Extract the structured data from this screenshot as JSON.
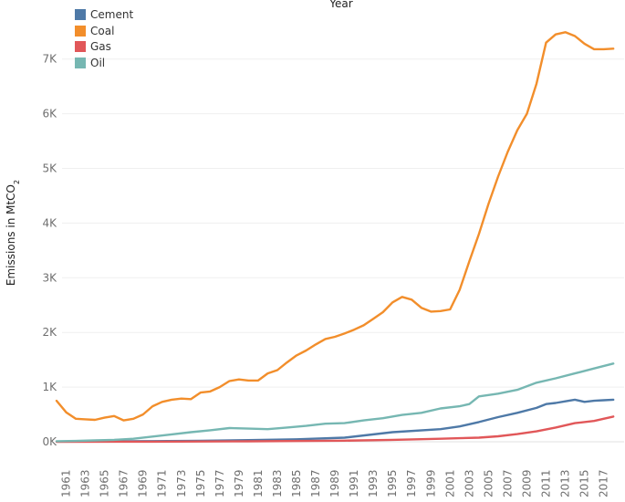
{
  "chart_data": {
    "type": "line",
    "title": "",
    "top_axis_label": "Year",
    "ylabel": "Emissions in MtCO",
    "ylabel_subscript": "2",
    "xlabel": "",
    "ylim": [
      -250,
      7650
    ],
    "yticks": [
      0,
      1000,
      2000,
      3000,
      4000,
      5000,
      6000,
      7000
    ],
    "ytick_labels": [
      "0K",
      "1K",
      "2K",
      "3K",
      "4K",
      "5K",
      "6K",
      "7K"
    ],
    "xrange": [
      1960,
      2018
    ],
    "xticks": [
      1961,
      1963,
      1965,
      1967,
      1969,
      1971,
      1973,
      1975,
      1977,
      1979,
      1981,
      1983,
      1985,
      1987,
      1989,
      1991,
      1993,
      1995,
      1997,
      1999,
      2001,
      2003,
      2005,
      2007,
      2009,
      2011,
      2013,
      2015,
      2017
    ],
    "grid": true,
    "legend_position": "top-left",
    "series": [
      {
        "name": "Cement",
        "color": "#4e79a7",
        "x": [
          1960,
          1965,
          1970,
          1975,
          1980,
          1985,
          1990,
          1995,
          2000,
          2002,
          2004,
          2006,
          2008,
          2010,
          2011,
          2012,
          2013,
          2014,
          2015,
          2016,
          2017,
          2018
        ],
        "values": [
          5,
          8,
          12,
          18,
          30,
          45,
          75,
          175,
          230,
          280,
          360,
          450,
          530,
          620,
          690,
          710,
          740,
          770,
          730,
          750,
          760,
          770
        ]
      },
      {
        "name": "Coal",
        "color": "#f28e2b",
        "x": [
          1960,
          1961,
          1962,
          1963,
          1964,
          1965,
          1966,
          1967,
          1968,
          1969,
          1970,
          1971,
          1972,
          1973,
          1974,
          1975,
          1976,
          1977,
          1978,
          1979,
          1980,
          1981,
          1982,
          1983,
          1984,
          1985,
          1986,
          1987,
          1988,
          1989,
          1990,
          1991,
          1992,
          1993,
          1994,
          1995,
          1996,
          1997,
          1998,
          1999,
          2000,
          2001,
          2002,
          2003,
          2004,
          2005,
          2006,
          2007,
          2008,
          2009,
          2010,
          2011,
          2012,
          2013,
          2014,
          2015,
          2016,
          2017,
          2018
        ],
        "values": [
          750,
          540,
          420,
          410,
          400,
          440,
          470,
          390,
          420,
          500,
          650,
          730,
          770,
          790,
          780,
          900,
          920,
          1000,
          1110,
          1140,
          1120,
          1120,
          1250,
          1310,
          1450,
          1580,
          1670,
          1780,
          1880,
          1920,
          1980,
          2050,
          2130,
          2250,
          2370,
          2550,
          2650,
          2600,
          2450,
          2380,
          2390,
          2420,
          2780,
          3300,
          3800,
          4350,
          4850,
          5300,
          5700,
          6000,
          6550,
          7300,
          7450,
          7490,
          7420,
          7280,
          7180,
          7180,
          7190
        ]
      },
      {
        "name": "Gas",
        "color": "#e15759",
        "x": [
          1960,
          1970,
          1980,
          1990,
          1995,
          2000,
          2002,
          2004,
          2006,
          2008,
          2010,
          2012,
          2014,
          2016,
          2017,
          2018
        ],
        "values": [
          0,
          2,
          8,
          20,
          35,
          55,
          65,
          75,
          100,
          140,
          190,
          260,
          340,
          380,
          420,
          460
        ]
      },
      {
        "name": "Oil",
        "color": "#76b7b2",
        "x": [
          1960,
          1962,
          1964,
          1966,
          1968,
          1970,
          1972,
          1974,
          1976,
          1978,
          1980,
          1982,
          1984,
          1986,
          1988,
          1990,
          1992,
          1994,
          1996,
          1998,
          2000,
          2002,
          2003,
          2004,
          2006,
          2008,
          2010,
          2012,
          2014,
          2016,
          2018
        ],
        "values": [
          10,
          15,
          25,
          35,
          55,
          95,
          135,
          175,
          210,
          250,
          240,
          230,
          260,
          290,
          330,
          340,
          390,
          430,
          490,
          530,
          610,
          650,
          690,
          830,
          880,
          950,
          1080,
          1160,
          1250,
          1340,
          1430
        ]
      }
    ]
  }
}
